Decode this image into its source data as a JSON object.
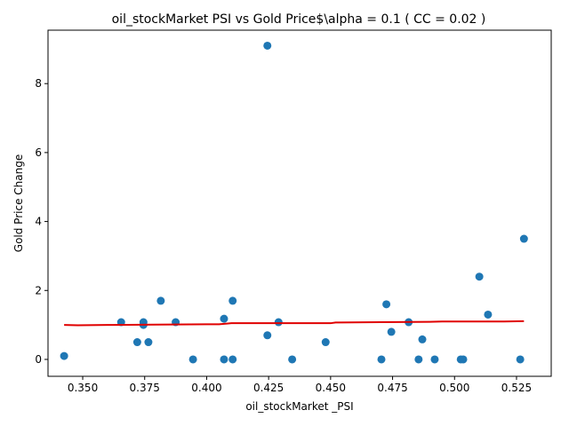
{
  "chart_data": {
    "type": "scatter",
    "title": "oil_stockMarket  PSI vs Gold Price$\\alpha = 0.1 ( CC = 0.02 )",
    "xlabel": "oil_stockMarket _PSI",
    "ylabel": "Gold Price Change",
    "xlim": [
      0.336,
      0.539
    ],
    "ylim": [
      -0.49,
      9.55
    ],
    "x_ticks": [
      0.35,
      0.375,
      0.4,
      0.425,
      0.45,
      0.475,
      0.5,
      0.525
    ],
    "x_tick_labels": [
      "0.350",
      "0.375",
      "0.400",
      "0.425",
      "0.450",
      "0.475",
      "0.500",
      "0.525"
    ],
    "y_ticks": [
      0,
      2,
      4,
      6,
      8
    ],
    "y_tick_labels": [
      "0",
      "2",
      "4",
      "6",
      "8"
    ],
    "grid": false,
    "series": [
      {
        "type": "scatter",
        "color": "#1f77b4",
        "x": [
          0.3425,
          0.3655,
          0.372,
          0.3745,
          0.3745,
          0.3765,
          0.3815,
          0.3875,
          0.3945,
          0.407,
          0.407,
          0.4105,
          0.4105,
          0.4245,
          0.4245,
          0.429,
          0.4345,
          0.448,
          0.4705,
          0.4725,
          0.4745,
          0.4815,
          0.4855,
          0.487,
          0.492,
          0.5025,
          0.5035,
          0.51,
          0.5135,
          0.5265,
          0.528
        ],
        "y": [
          0.1,
          1.08,
          0.5,
          1.08,
          1.0,
          0.5,
          1.7,
          1.08,
          0.0,
          1.18,
          0.0,
          1.7,
          0.0,
          9.1,
          0.7,
          1.08,
          0.0,
          0.5,
          0.0,
          1.6,
          0.8,
          1.08,
          0.0,
          0.58,
          0.0,
          0.0,
          0.0,
          2.4,
          1.3,
          0.0,
          3.5
        ]
      },
      {
        "type": "line",
        "color": "#e00000",
        "x": [
          0.3425,
          0.348,
          0.36,
          0.38,
          0.4,
          0.405,
          0.41,
          0.43,
          0.45,
          0.452,
          0.47,
          0.49,
          0.495,
          0.51,
          0.52,
          0.528
        ],
        "y": [
          1.0,
          0.99,
          1.0,
          1.01,
          1.02,
          1.02,
          1.05,
          1.05,
          1.05,
          1.07,
          1.08,
          1.09,
          1.1,
          1.1,
          1.1,
          1.11
        ]
      }
    ]
  }
}
